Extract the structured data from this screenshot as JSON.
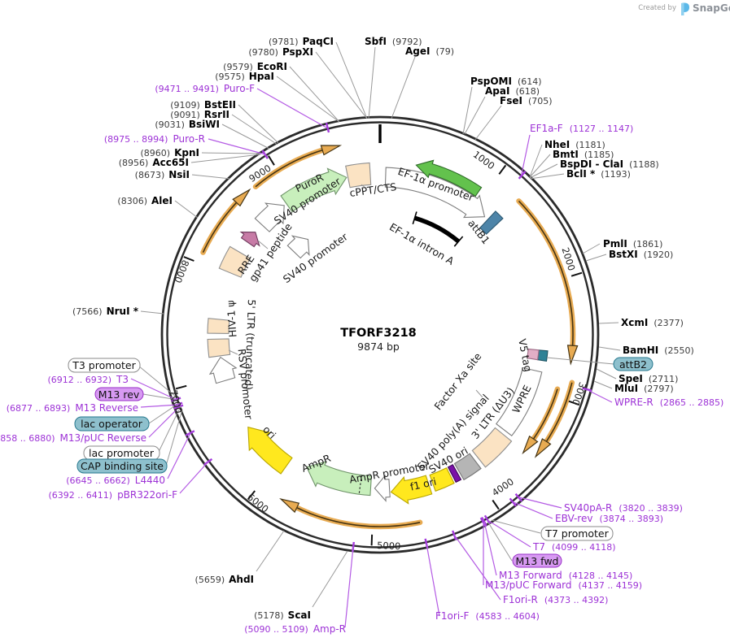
{
  "branding": {
    "created_by": "Created by",
    "app_name": "SnapGene"
  },
  "plasmid": {
    "name": "TFORF3218",
    "size": "9874 bp"
  },
  "ticks": {
    "t1000": "1000",
    "t2000": "2000",
    "t3000": "3000",
    "t4000": "4000",
    "t5000": "5000",
    "t6000": "6000",
    "t7000": "7000",
    "t8000": "8000",
    "t9000": "9000"
  },
  "enzymes": {
    "paqci": {
      "name": "PaqCI",
      "pos": "(9781)"
    },
    "pspxi": {
      "name": "PspXI",
      "pos": "(9780)"
    },
    "sbfi": {
      "name": "SbfI",
      "pos": "(9792)"
    },
    "agei": {
      "name": "AgeI",
      "pos": "(79)"
    },
    "ecori": {
      "name": "EcoRI",
      "pos": "(9579)"
    },
    "hpai": {
      "name": "HpaI",
      "pos": "(9575)"
    },
    "pspomi": {
      "name": "PspOMI",
      "pos": "(614)"
    },
    "apai": {
      "name": "ApaI",
      "pos": "(618)"
    },
    "fsei": {
      "name": "FseI",
      "pos": "(705)"
    },
    "nhei": {
      "name": "NheI",
      "pos": "(1181)"
    },
    "bmti": {
      "name": "BmtI",
      "pos": "(1185)"
    },
    "bspdi_clai": {
      "name": "BspDI - ClaI",
      "pos": "(1188)"
    },
    "bcli": {
      "name": "BclI *",
      "pos": "(1193)"
    },
    "pmli": {
      "name": "PmlI",
      "pos": "(1861)"
    },
    "bstxi": {
      "name": "BstXI",
      "pos": "(1920)"
    },
    "xcmi": {
      "name": "XcmI",
      "pos": "(2377)"
    },
    "bamhi": {
      "name": "BamHI",
      "pos": "(2550)"
    },
    "spei": {
      "name": "SpeI",
      "pos": "(2711)"
    },
    "mlui": {
      "name": "MluI",
      "pos": "(2797)"
    },
    "bsteii": {
      "name": "BstEII",
      "pos": "(9109)"
    },
    "rsrii": {
      "name": "RsrII",
      "pos": "(9091)"
    },
    "bsiwi": {
      "name": "BsiWI",
      "pos": "(9031)"
    },
    "kpni": {
      "name": "KpnI",
      "pos": "(8960)"
    },
    "acc65i": {
      "name": "Acc65I",
      "pos": "(8956)"
    },
    "nsii": {
      "name": "NsiI",
      "pos": "(8673)"
    },
    "alei": {
      "name": "AleI",
      "pos": "(8306)"
    },
    "nrui": {
      "name": "NruI *",
      "pos": "(7566)"
    },
    "ahdi": {
      "name": "AhdI",
      "pos": "(5659)"
    },
    "scai": {
      "name": "ScaI",
      "pos": "(5178)"
    }
  },
  "primers": {
    "puro_f": {
      "name": "Puro-F",
      "range": "(9471 .. 9491)"
    },
    "puro_r": {
      "name": "Puro-R",
      "range": "(8975 .. 8994)"
    },
    "ef1a_f": {
      "name": "EF1a-F",
      "range": "(1127 .. 1147)"
    },
    "wpre_r": {
      "name": "WPRE-R",
      "range": "(2865 .. 2885)"
    },
    "sv40pa_r": {
      "name": "SV40pA-R",
      "range": "(3820 .. 3839)"
    },
    "ebv_rev": {
      "name": "EBV-rev",
      "range": "(3874 .. 3893)"
    },
    "t7": {
      "name": "T7",
      "range": "(4099 .. 4118)"
    },
    "m13_forward": {
      "name": "M13 Forward",
      "range": "(4128 .. 4145)"
    },
    "m13_puc_forward": {
      "name": "M13/pUC Forward",
      "range": "(4137 .. 4159)"
    },
    "f1ori_r": {
      "name": "F1ori-R",
      "range": "(4373 .. 4392)"
    },
    "f1ori_f": {
      "name": "F1ori-F",
      "range": "(4583 .. 4604)"
    },
    "amp_r": {
      "name": "Amp-R",
      "range": "(5090 .. 5109)"
    },
    "pbr322ori_f": {
      "name": "pBR322ori-F",
      "range": "(6392 .. 6411)"
    },
    "l4440": {
      "name": "L4440",
      "range": "(6645 .. 6662)"
    },
    "m13_puc_reverse": {
      "name": "M13/pUC Reverse",
      "range": "(6858 .. 6880)"
    },
    "m13_reverse": {
      "name": "M13 Reverse",
      "range": "(6877 .. 6893)"
    },
    "t3": {
      "name": "T3",
      "range": "(6912 .. 6932)"
    }
  },
  "boxed_labels": {
    "t3_promoter": "T3 promoter",
    "m13_rev": "M13 rev",
    "lac_operator": "lac operator",
    "lac_promoter": "lac promoter",
    "cap_binding_site": "CAP binding site",
    "t7_promoter": "T7 promoter",
    "m13_fwd": "M13 fwd",
    "attb2": "attB2"
  },
  "features": {
    "puror": "PuroR",
    "sv40_promoter_1": "SV40 promoter",
    "sv40_promoter_2": "SV40 promoter",
    "cppt_cts": "cPPT/CTS",
    "ef1a_promoter": "EF-1α promoter",
    "attb1": "attB1",
    "ef1a_intron_a": "EF-1α intron A",
    "rre": "RRE",
    "gp41_peptide": "gp41 peptide",
    "hiv1_psi": "HIV-1 ψ",
    "five_ltr": "5' LTR (truncated)",
    "rsv_promoter": "RSV promoter",
    "ori": "ori",
    "ampr": "AmpR",
    "ampr_promoter": "AmpR promoter",
    "f1_ori": "f1 ori",
    "sv40_ori": "SV40 ori",
    "sv40_polya": "SV40 poly(A) signal",
    "three_ltr": "3' LTR (ΔU3)",
    "wpre": "WPRE",
    "v5_tag": "V5 tag",
    "factor_xa": "Factor Xa site"
  },
  "colors": {
    "backbone": "#2B2B2B",
    "primer_purple": "#9D32D6",
    "teal_box": "#8EC0CD",
    "purple_box": "#D79AF2",
    "white_box": "#FFFFFF",
    "feature_green": "#C8EFBC",
    "feature_yellow": "#FFE81E",
    "feature_tan": "#FBE3C3",
    "feature_gray": "#B5B5B5",
    "orange_arc": "#E8AB52",
    "bright_green": "#63C24D",
    "attb_blue": "#4D84A8",
    "logo_blue": "#5BB8E8"
  }
}
